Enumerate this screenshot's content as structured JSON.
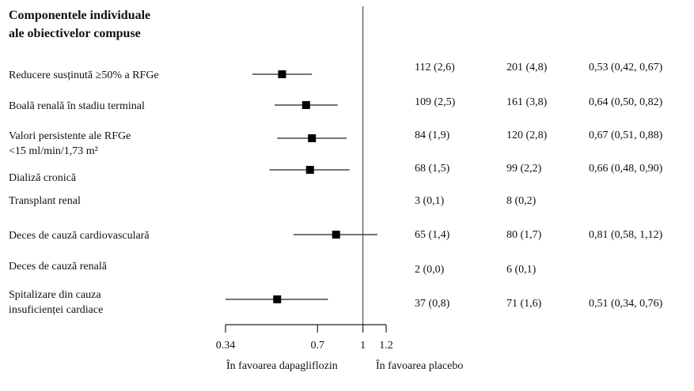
{
  "section_title": [
    "Componentele individuale",
    "ale obiectivelor compuse"
  ],
  "axis": {
    "scale": "log",
    "ticks": [
      "0.34",
      "0.7",
      "1",
      "1.2"
    ],
    "tick_values": [
      0.34,
      0.7,
      1,
      1.2
    ],
    "reference_line": 1,
    "favors_left": "În favoarea dapagliflozin",
    "favors_right": "În favoarea placebo"
  },
  "rows": [
    {
      "label": [
        "Reducere susținută ≥50% a RFGe"
      ],
      "dapa": "112 (2,6)",
      "placebo": "201 (4,8)",
      "hr_text": "0,53 (0,42, 0,67)"
    },
    {
      "label": [
        "Boală renală în stadiu terminal"
      ],
      "dapa": "109 (2,5)",
      "placebo": "161 (3,8)",
      "hr_text": "0,64 (0,50, 0,82)"
    },
    {
      "label": [
        "Valori persistente ale RFGe",
        "<15 ml/min/1,73 m²"
      ],
      "dapa": "84 (1,9)",
      "placebo": "120 (2,8)",
      "hr_text": "0,67 (0,51, 0,88)"
    },
    {
      "label": [
        "Dializă cronică"
      ],
      "dapa": "68 (1,5)",
      "placebo": "99 (2,2)",
      "hr_text": "0,66 (0,48, 0,90)"
    },
    {
      "label": [
        "Transplant renal"
      ],
      "dapa": "3 (0,1)",
      "placebo": "8 (0,2)",
      "hr_text": ""
    },
    {
      "label": [
        "Deces de cauză cardiovasculară"
      ],
      "dapa": "65 (1,4)",
      "placebo": "80 (1,7)",
      "hr_text": "0,81 (0,58, 1,12)"
    },
    {
      "label": [
        "Deces de cauză renală"
      ],
      "dapa": "2 (0,0)",
      "placebo": "6 (0,1)",
      "hr_text": ""
    },
    {
      "label": [
        "Spitalizare din cauza",
        "insuficienței cardiace"
      ],
      "dapa": "37 (0,8)",
      "placebo": "71 (1,6)",
      "hr_text": "0,51 (0,34, 0,76)"
    }
  ],
  "chart_data": {
    "type": "forest",
    "x_scale": "log",
    "xlim": [
      0.34,
      1.2
    ],
    "reference": 1,
    "points": [
      {
        "name": "Reducere susținută ≥50% a RFGe",
        "hr": 0.53,
        "lo": 0.42,
        "hi": 0.67
      },
      {
        "name": "Boală renală în stadiu terminal",
        "hr": 0.64,
        "lo": 0.5,
        "hi": 0.82
      },
      {
        "name": "Valori persistente ale RFGe <15 ml/min/1,73 m²",
        "hr": 0.67,
        "lo": 0.51,
        "hi": 0.88
      },
      {
        "name": "Dializă cronică",
        "hr": 0.66,
        "lo": 0.48,
        "hi": 0.9
      },
      {
        "name": "Deces de cauză cardiovasculară",
        "hr": 0.81,
        "lo": 0.58,
        "hi": 1.12
      },
      {
        "name": "Spitalizare din cauza insuficienței cardiace",
        "hr": 0.51,
        "lo": 0.34,
        "hi": 0.76
      }
    ]
  }
}
